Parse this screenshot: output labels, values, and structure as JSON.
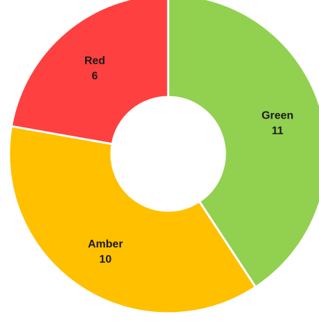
{
  "chart_data": {
    "type": "pie",
    "variant": "donut",
    "title": "",
    "start": "top, clockwise",
    "slices": [
      {
        "label": "Green",
        "value": 11,
        "color": "#92D050"
      },
      {
        "label": "Amber",
        "value": 10,
        "color": "#FFC000"
      },
      {
        "label": "Red",
        "value": 6,
        "color": "#FF4040"
      }
    ],
    "separator_color": "#FFFFFF",
    "legend": "none"
  }
}
